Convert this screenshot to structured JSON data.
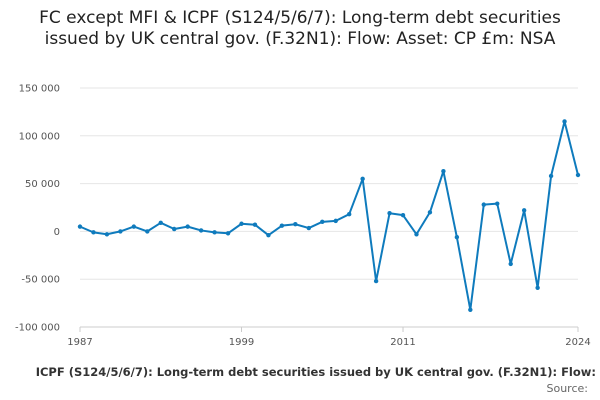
{
  "chart_data": {
    "type": "line",
    "title": "FC except MFI & ICPF (S124/5/6/7): Long-term debt securities issued by UK central gov. (F.32N1): Flow: Asset: CP £m: NSA",
    "xlabel": "",
    "ylabel": "",
    "x": [
      1987,
      1988,
      1989,
      1990,
      1991,
      1992,
      1993,
      1994,
      1995,
      1996,
      1997,
      1998,
      1999,
      2000,
      2001,
      2002,
      2003,
      2004,
      2005,
      2006,
      2007,
      2008,
      2009,
      2010,
      2011,
      2012,
      2013,
      2014,
      2015,
      2016,
      2017,
      2018,
      2019,
      2020,
      2021,
      2022,
      2023,
      2024
    ],
    "series": [
      {
        "name": "FC except MFI & ICPF (S124/5/6/7): Long-term debt securities issued by UK central gov. (F.32N1): Flow: Asset: CP £m: NSA",
        "color": "#0f7bbd",
        "values": [
          5000,
          -1000,
          -3000,
          0,
          5000,
          0,
          9000,
          2500,
          5000,
          1000,
          -1000,
          -2000,
          8000,
          7000,
          -4000,
          6000,
          7500,
          3500,
          10000,
          11000,
          18000,
          55000,
          -52000,
          19000,
          17000,
          -3000,
          20000,
          63000,
          -6000,
          -82000,
          28000,
          29000,
          -34000,
          22000,
          -59000,
          58000,
          115000,
          59000
        ]
      }
    ],
    "xticks": [
      "1987",
      "1999",
      "2011",
      "2024"
    ],
    "yticks": [
      "150 000",
      "100 000",
      "50 000",
      "0",
      "-50 000",
      "-100 000"
    ],
    "ylim": [
      -100000,
      150000
    ],
    "xlim": [
      1987,
      2024
    ],
    "grid": "horizontal",
    "legend_position": "bottom",
    "legend_text": "ICPF (S124/5/6/7): Long-term debt securities issued by UK central gov. (F.32N1): Flow:",
    "source_label": "Source:"
  }
}
